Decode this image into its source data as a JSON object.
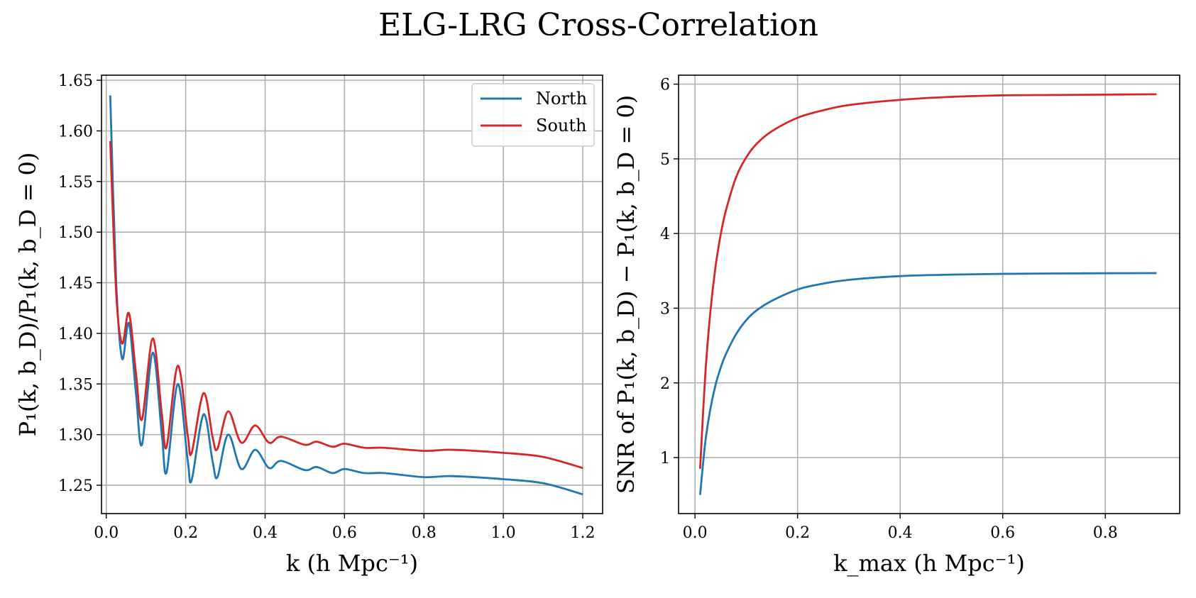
{
  "figure": {
    "title": "ELG-LRG Cross-Correlation"
  },
  "colors": {
    "north": "#1f77b4",
    "south": "#d62728",
    "grid": "#b0b0b0"
  },
  "chart_data": [
    {
      "type": "line",
      "xlabel": "k (h Mpc⁻¹)",
      "ylabel": "P₁(k, b_D)/P₁(k, b_D = 0)",
      "xlim": [
        -0.012,
        1.25
      ],
      "ylim": [
        1.222,
        1.655
      ],
      "xticks": [
        "0.0",
        "0.2",
        "0.4",
        "0.6",
        "0.8",
        "1.0",
        "1.2"
      ],
      "xtick_values": [
        0.0,
        0.2,
        0.4,
        0.6,
        0.8,
        1.0,
        1.2
      ],
      "yticks": [
        "1.25",
        "1.30",
        "1.35",
        "1.40",
        "1.45",
        "1.50",
        "1.55",
        "1.60",
        "1.65"
      ],
      "ytick_values": [
        1.25,
        1.3,
        1.35,
        1.4,
        1.45,
        1.5,
        1.55,
        1.6,
        1.65
      ],
      "grid": true,
      "legend": "top-right",
      "series": [
        {
          "name": "North",
          "color": "#1f77b4",
          "x": [
            0.01,
            0.025,
            0.04,
            0.057,
            0.075,
            0.09,
            0.117,
            0.14,
            0.152,
            0.18,
            0.205,
            0.215,
            0.245,
            0.268,
            0.28,
            0.307,
            0.34,
            0.375,
            0.41,
            0.44,
            0.5,
            0.53,
            0.57,
            0.6,
            0.65,
            0.7,
            0.8,
            0.87,
            1.0,
            1.1,
            1.2
          ],
          "y": [
            1.635,
            1.45,
            1.375,
            1.41,
            1.34,
            1.29,
            1.381,
            1.3,
            1.263,
            1.35,
            1.275,
            1.255,
            1.32,
            1.273,
            1.258,
            1.3,
            1.266,
            1.285,
            1.267,
            1.274,
            1.265,
            1.268,
            1.262,
            1.266,
            1.262,
            1.262,
            1.258,
            1.259,
            1.256,
            1.252,
            1.241
          ]
        },
        {
          "name": "South",
          "color": "#d62728",
          "x": [
            0.01,
            0.025,
            0.04,
            0.057,
            0.075,
            0.09,
            0.117,
            0.14,
            0.152,
            0.18,
            0.205,
            0.215,
            0.245,
            0.268,
            0.28,
            0.307,
            0.34,
            0.375,
            0.41,
            0.44,
            0.5,
            0.53,
            0.57,
            0.6,
            0.65,
            0.7,
            0.8,
            0.87,
            1.0,
            1.1,
            1.2
          ],
          "y": [
            1.59,
            1.44,
            1.39,
            1.42,
            1.36,
            1.315,
            1.395,
            1.32,
            1.288,
            1.368,
            1.3,
            1.282,
            1.341,
            1.297,
            1.286,
            1.323,
            1.292,
            1.309,
            1.292,
            1.298,
            1.29,
            1.293,
            1.288,
            1.291,
            1.287,
            1.287,
            1.284,
            1.285,
            1.282,
            1.278,
            1.267
          ]
        }
      ]
    },
    {
      "type": "line",
      "xlabel": "k_max (h Mpc⁻¹)",
      "ylabel": "SNR of P₁(k, b_D) − P₁(k, b_D = 0)",
      "xlim": [
        -0.032,
        0.945
      ],
      "ylim": [
        0.25,
        6.12
      ],
      "xticks": [
        "0.0",
        "0.2",
        "0.4",
        "0.6",
        "0.8"
      ],
      "xtick_values": [
        0.0,
        0.2,
        0.4,
        0.6,
        0.8
      ],
      "yticks": [
        "1",
        "2",
        "3",
        "4",
        "5",
        "6"
      ],
      "ytick_values": [
        1,
        2,
        3,
        4,
        5,
        6
      ],
      "grid": true,
      "legend": "none",
      "series": [
        {
          "color": "#1f77b4",
          "x": [
            0.01,
            0.02,
            0.03,
            0.04,
            0.05,
            0.06,
            0.08,
            0.1,
            0.12,
            0.15,
            0.2,
            0.25,
            0.3,
            0.4,
            0.5,
            0.6,
            0.7,
            0.8,
            0.9
          ],
          "y": [
            0.5,
            1.2,
            1.65,
            1.97,
            2.2,
            2.38,
            2.65,
            2.84,
            2.97,
            3.1,
            3.25,
            3.33,
            3.38,
            3.43,
            3.45,
            3.46,
            3.465,
            3.468,
            3.47
          ]
        },
        {
          "color": "#d62728",
          "x": [
            0.01,
            0.02,
            0.03,
            0.04,
            0.05,
            0.06,
            0.08,
            0.1,
            0.12,
            0.15,
            0.2,
            0.25,
            0.3,
            0.4,
            0.5,
            0.6,
            0.7,
            0.8,
            0.9
          ],
          "y": [
            0.85,
            2.1,
            2.95,
            3.55,
            3.98,
            4.3,
            4.75,
            5.02,
            5.2,
            5.37,
            5.55,
            5.65,
            5.72,
            5.79,
            5.83,
            5.85,
            5.855,
            5.86,
            5.865
          ]
        }
      ]
    }
  ]
}
